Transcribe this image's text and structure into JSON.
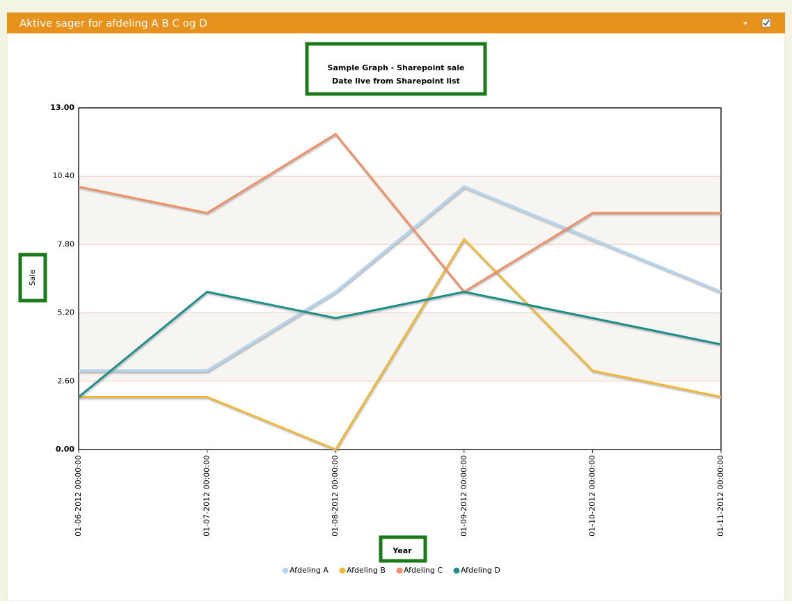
{
  "header": {
    "title": "Aktive sager for afdeling A B C og D"
  },
  "chart_data": {
    "type": "line",
    "title": [
      "Sample Graph - Sharepoint sale",
      "Date live from Sharepoint list"
    ],
    "y_label": "Sale",
    "x_label": "Year",
    "categories": [
      "01-06-2012 00:00:00",
      "01-07-2012 00:00:00",
      "01-08-2012 00:00:00",
      "01-09-2012 00:00:00",
      "01-10-2012 00:00:00",
      "01-11-2012 00:00:00"
    ],
    "series": [
      {
        "name": "Afdeling A",
        "color": "#b8d4ea",
        "values": [
          3,
          3,
          6,
          10,
          8,
          6
        ]
      },
      {
        "name": "Afdeling B",
        "color": "#f0b83a",
        "values": [
          2,
          2,
          0,
          8,
          3,
          2
        ]
      },
      {
        "name": "Afdeling C",
        "color": "#ef9068",
        "values": [
          10,
          9,
          12,
          6,
          9,
          9
        ]
      },
      {
        "name": "Afdeling D",
        "color": "#1e8f8c",
        "values": [
          2,
          6,
          5,
          6,
          5,
          4
        ]
      }
    ],
    "ylim": [
      0,
      13
    ],
    "yticks": [
      {
        "value": 0,
        "label": "0.00"
      },
      {
        "value": 2.6,
        "label": "2.60"
      },
      {
        "value": 5.2,
        "label": "5.20"
      },
      {
        "value": 7.8,
        "label": "7.80"
      },
      {
        "value": 10.4,
        "label": "10.40"
      },
      {
        "value": 13,
        "label": "13.00"
      }
    ],
    "grid": true
  }
}
